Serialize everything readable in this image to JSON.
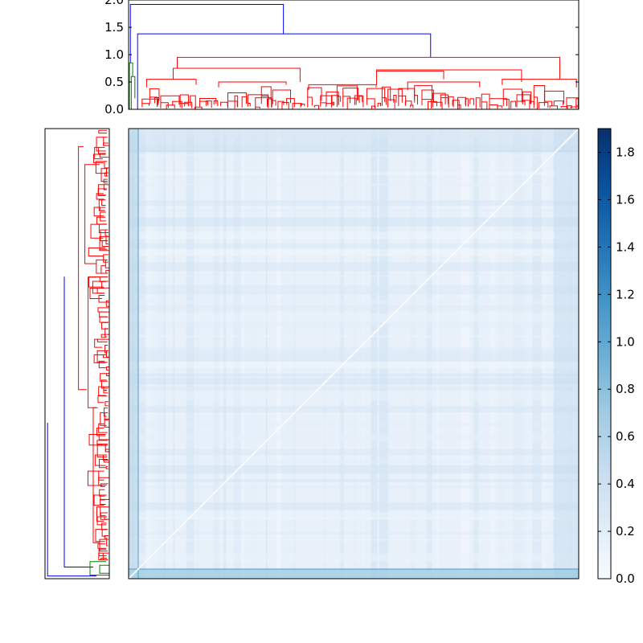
{
  "chart_data": [
    {
      "type": "dendrogram",
      "orientation": "top",
      "ylim": [
        0,
        2.0
      ],
      "yticks": [
        0.0,
        0.5,
        1.0,
        1.5,
        2.0
      ],
      "ytick_labels": [
        "0.0",
        "0.5",
        "1.0",
        "1.5",
        "2.0"
      ],
      "grid": false,
      "link_colors": [
        "#ff0000",
        "#008000",
        "#0000ff"
      ],
      "major_links": [
        {
          "x_left": 0.4,
          "x_right": 34.4,
          "height": 1.92,
          "color": "#0000ff"
        },
        {
          "x_left": 2.0,
          "x_right": 67.1,
          "height": 1.38,
          "color": "#0000ff"
        },
        {
          "x_left": 10.8,
          "x_right": 95.8,
          "height": 0.95,
          "color": "#ff0000"
        },
        {
          "x_left": 9.9,
          "x_right": 38.1,
          "height": 0.75,
          "color": "#ff0000"
        },
        {
          "x_left": 55.1,
          "x_right": 87.3,
          "height": 0.72,
          "color": "#ff0000"
        }
      ]
    },
    {
      "type": "dendrogram",
      "orientation": "left",
      "grid": false,
      "link_colors": [
        "#ff0000",
        "#008000",
        "#0000ff"
      ]
    },
    {
      "type": "heatmap",
      "colormap": "Blues",
      "vmin": 0.0,
      "vmax": 1.9,
      "grid": false,
      "colorbar": {
        "ticks": [
          0.0,
          0.2,
          0.4,
          0.6,
          0.8,
          1.0,
          1.2,
          1.4,
          1.6,
          1.8
        ],
        "tick_labels": [
          "0.0",
          "0.2",
          "0.4",
          "0.6",
          "0.8",
          "1.0",
          "1.2",
          "1.4",
          "1.6",
          "1.8"
        ],
        "placement": "right"
      }
    }
  ]
}
